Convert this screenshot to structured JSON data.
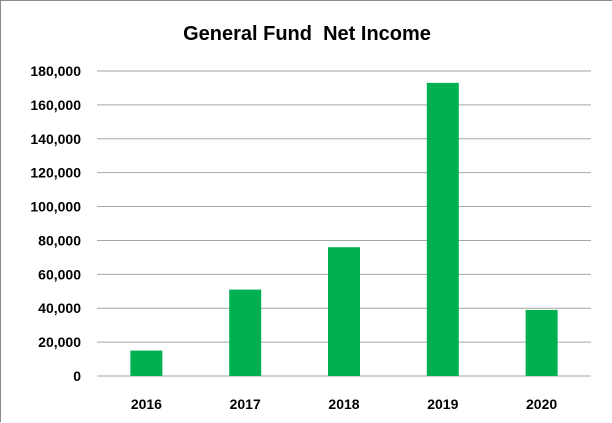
{
  "chart_data": {
    "type": "bar",
    "title": "General Fund  Net Income",
    "categories": [
      "2016",
      "2017",
      "2018",
      "2019",
      "2020"
    ],
    "values": [
      15000,
      51000,
      76000,
      173000,
      39000
    ],
    "ylim": [
      0,
      180000
    ],
    "yticks": [
      "0",
      "20,000",
      "40,000",
      "60,000",
      "80,000",
      "100,000",
      "120,000",
      "140,000",
      "160,000",
      "180,000"
    ],
    "xlabel": "",
    "ylabel": "",
    "grid": true,
    "legend": "none",
    "bar_color": "#00b050",
    "grid_color": "#a6a6a6"
  }
}
